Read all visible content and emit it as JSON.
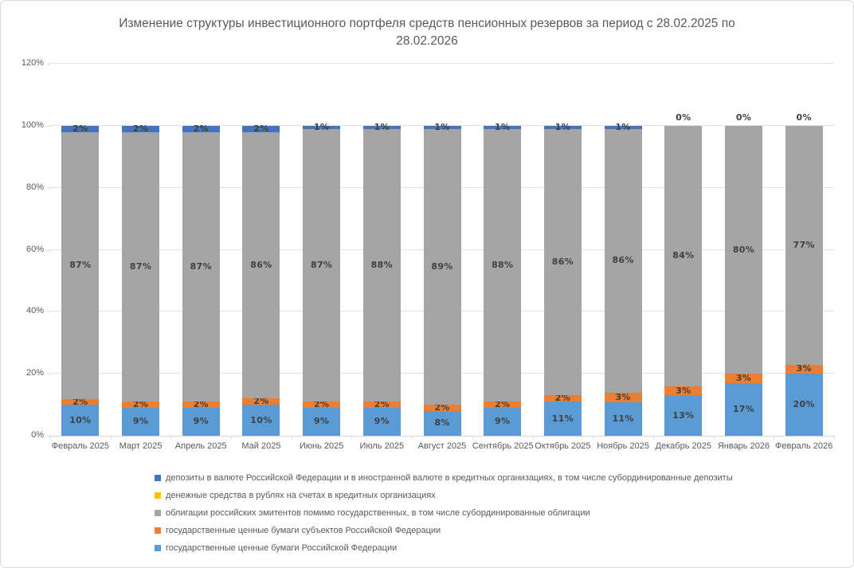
{
  "chart": {
    "title": "Изменение структуры инвестиционного портфеля средств пенсионных резервов за период с 28.02.2025 по 28.02.2026"
  },
  "chart_data": {
    "type": "bar",
    "stacked": true,
    "percent_stacked": true,
    "title": "Изменение структуры инвестиционного портфеля средств пенсионных резервов за период с 28.02.2025 по 28.02.2026",
    "categories": [
      "Февраль 2025",
      "Март 2025",
      "Апрель 2025",
      "Май 2025",
      "Июнь 2025",
      "Июль 2025",
      "Август 2025",
      "Сентябрь 2025",
      "Октябрь 2025",
      "Ноябрь 2025",
      "Декабрь 2025",
      "Январь 2026",
      "Февраль 2026"
    ],
    "series": [
      {
        "name": "депозиты в валюте Российской Федерации и и в иностранной валюте в кредитных организациях, в том числе субординированные депозиты",
        "display_name": "депозиты в валюте Российской Федерации и в иностранной валюте в кредитных организациях, в том числе субординированные депозиты",
        "color": "#4472C4",
        "show_labels": true,
        "values": [
          2,
          2,
          2,
          2,
          1,
          1,
          1,
          1,
          1,
          1,
          0,
          0,
          0
        ]
      },
      {
        "name": "денежные средства в рублях на счетах в кредитных организациях",
        "display_name": "денежные средства в рублях на счетах в кредитных организациях",
        "color": "#FFC000",
        "show_labels": false,
        "values": [
          0,
          0,
          0,
          0,
          0,
          0,
          0,
          0,
          0,
          0,
          0,
          0,
          0
        ]
      },
      {
        "name": "облигации российских эмитентов помимо государственных, в том числе субординированные облигации",
        "display_name": "облигации российских эмитентов помимо государственных, в том числе субординированные облигации",
        "color": "#A5A5A5",
        "show_labels": true,
        "values": [
          87,
          87,
          87,
          86,
          87,
          88,
          89,
          88,
          86,
          86,
          84,
          80,
          77
        ]
      },
      {
        "name": "государственные ценные бумаги субъектов Российской Федерации",
        "display_name": "государственные ценные бумаги субъектов Российской Федерации",
        "color": "#ED7D31",
        "show_labels": true,
        "values": [
          2,
          2,
          2,
          2,
          2,
          2,
          2,
          2,
          2,
          3,
          3,
          3,
          3
        ]
      },
      {
        "name": "государственные ценные бумаги Российской Федерации",
        "display_name": "государственные ценные бумаги Российской Федерации",
        "color": "#5B9BD5",
        "show_labels": true,
        "values": [
          10,
          9,
          9,
          10,
          9,
          9,
          8,
          9,
          11,
          11,
          13,
          17,
          20
        ]
      }
    ],
    "y_ticks": [
      "0%",
      "20%",
      "40%",
      "60%",
      "80%",
      "100%",
      "120%"
    ],
    "ylim": [
      0,
      120
    ],
    "xlabel": "",
    "ylabel": "",
    "grid": true,
    "legend_position": "bottom-left",
    "colors": {
      "label_text": "#404040",
      "axis_text": "#595959",
      "gridline": "#e2e2e2",
      "border": "#d9d9d9"
    }
  }
}
